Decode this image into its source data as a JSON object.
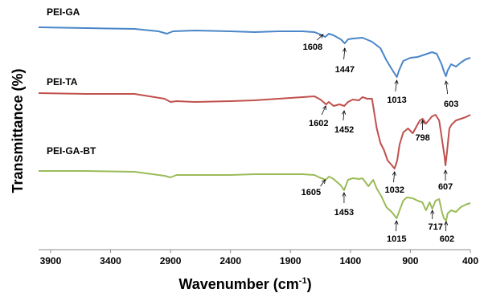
{
  "chart_data": {
    "type": "line",
    "xlabel": "Wavenumber (cm",
    "xlabel_superscript": "-1",
    "xlabel_suffix": ")",
    "ylabel": "Transmittance (%)",
    "xlim": [
      4000,
      400
    ],
    "x_reversed": true,
    "x_ticks": [
      3900,
      3400,
      2900,
      2400,
      1900,
      1400,
      900,
      400
    ],
    "y_ticks_shown": false,
    "grid": false,
    "series": [
      {
        "name": "PEI-GA",
        "color": "#4a86c8",
        "points": [
          [
            4000,
            34
          ],
          [
            3600,
            35
          ],
          [
            3200,
            36
          ],
          [
            3000,
            39
          ],
          [
            2930,
            42
          ],
          [
            2880,
            39
          ],
          [
            2700,
            38
          ],
          [
            2400,
            39
          ],
          [
            2200,
            40
          ],
          [
            2000,
            39
          ],
          [
            1800,
            39
          ],
          [
            1700,
            40
          ],
          [
            1650,
            43
          ],
          [
            1610,
            46
          ],
          [
            1580,
            42
          ],
          [
            1540,
            44
          ],
          [
            1480,
            49
          ],
          [
            1447,
            54
          ],
          [
            1420,
            49
          ],
          [
            1380,
            48
          ],
          [
            1300,
            47
          ],
          [
            1220,
            52
          ],
          [
            1150,
            60
          ],
          [
            1100,
            75
          ],
          [
            1060,
            85
          ],
          [
            1030,
            92
          ],
          [
            1013,
            96
          ],
          [
            995,
            88
          ],
          [
            960,
            76
          ],
          [
            900,
            72
          ],
          [
            840,
            71
          ],
          [
            780,
            68
          ],
          [
            720,
            65
          ],
          [
            680,
            67
          ],
          [
            640,
            80
          ],
          [
            618,
            90
          ],
          [
            603,
            95
          ],
          [
            590,
            88
          ],
          [
            560,
            80
          ],
          [
            520,
            83
          ],
          [
            480,
            78
          ],
          [
            440,
            74
          ],
          [
            400,
            72
          ]
        ]
      },
      {
        "name": "PEI-TA",
        "color": "#c0504d",
        "points": [
          [
            4000,
            116
          ],
          [
            3600,
            117
          ],
          [
            3200,
            117
          ],
          [
            2950,
            123
          ],
          [
            2900,
            127
          ],
          [
            2850,
            126
          ],
          [
            2700,
            127
          ],
          [
            2400,
            126
          ],
          [
            2200,
            125
          ],
          [
            2000,
            123
          ],
          [
            1800,
            121
          ],
          [
            1700,
            120
          ],
          [
            1650,
            124
          ],
          [
            1602,
            130
          ],
          [
            1580,
            127
          ],
          [
            1540,
            132
          ],
          [
            1490,
            130
          ],
          [
            1452,
            132
          ],
          [
            1420,
            127
          ],
          [
            1380,
            124
          ],
          [
            1330,
            125
          ],
          [
            1300,
            121
          ],
          [
            1260,
            123
          ],
          [
            1220,
            123
          ],
          [
            1180,
            160
          ],
          [
            1150,
            178
          ],
          [
            1120,
            187
          ],
          [
            1090,
            200
          ],
          [
            1060,
            205
          ],
          [
            1032,
            210
          ],
          [
            1010,
            200
          ],
          [
            990,
            180
          ],
          [
            960,
            165
          ],
          [
            920,
            160
          ],
          [
            880,
            166
          ],
          [
            840,
            155
          ],
          [
            820,
            150
          ],
          [
            798,
            148
          ],
          [
            770,
            154
          ],
          [
            720,
            145
          ],
          [
            690,
            143
          ],
          [
            660,
            150
          ],
          [
            640,
            170
          ],
          [
            615,
            195
          ],
          [
            607,
            206
          ],
          [
            595,
            190
          ],
          [
            575,
            160
          ],
          [
            555,
            155
          ],
          [
            520,
            150
          ],
          [
            480,
            148
          ],
          [
            440,
            146
          ],
          [
            400,
            143
          ]
        ]
      },
      {
        "name": "PEI-GA-BT",
        "color": "#9bbb59",
        "points": [
          [
            4000,
            213
          ],
          [
            3600,
            213
          ],
          [
            3200,
            214
          ],
          [
            2950,
            219
          ],
          [
            2900,
            221
          ],
          [
            2850,
            218
          ],
          [
            2600,
            218
          ],
          [
            2400,
            218
          ],
          [
            2200,
            217
          ],
          [
            2000,
            217
          ],
          [
            1800,
            217
          ],
          [
            1700,
            218
          ],
          [
            1660,
            221
          ],
          [
            1605,
            224
          ],
          [
            1580,
            220
          ],
          [
            1540,
            223
          ],
          [
            1480,
            231
          ],
          [
            1453,
            237
          ],
          [
            1420,
            224
          ],
          [
            1380,
            222
          ],
          [
            1330,
            223
          ],
          [
            1300,
            222
          ],
          [
            1250,
            232
          ],
          [
            1210,
            224
          ],
          [
            1180,
            235
          ],
          [
            1140,
            245
          ],
          [
            1100,
            258
          ],
          [
            1050,
            265
          ],
          [
            1015,
            272
          ],
          [
            990,
            262
          ],
          [
            960,
            250
          ],
          [
            930,
            246
          ],
          [
            880,
            247
          ],
          [
            840,
            250
          ],
          [
            800,
            252
          ],
          [
            770,
            262
          ],
          [
            740,
            252
          ],
          [
            717,
            260
          ],
          [
            690,
            250
          ],
          [
            660,
            248
          ],
          [
            635,
            265
          ],
          [
            620,
            272
          ],
          [
            602,
            275
          ],
          [
            590,
            266
          ],
          [
            560,
            262
          ],
          [
            520,
            264
          ],
          [
            480,
            258
          ],
          [
            440,
            255
          ],
          [
            400,
            253
          ]
        ]
      }
    ],
    "peak_annotations": [
      {
        "series": "PEI-GA",
        "label": "1608",
        "x": 1608
      },
      {
        "series": "PEI-GA",
        "label": "1447",
        "x": 1447
      },
      {
        "series": "PEI-GA",
        "label": "1013",
        "x": 1013
      },
      {
        "series": "PEI-GA",
        "label": "603",
        "x": 603
      },
      {
        "series": "PEI-TA",
        "label": "1602",
        "x": 1602
      },
      {
        "series": "PEI-TA",
        "label": "1452",
        "x": 1452
      },
      {
        "series": "PEI-TA",
        "label": "1032",
        "x": 1032
      },
      {
        "series": "PEI-TA",
        "label": "798",
        "x": 798
      },
      {
        "series": "PEI-TA",
        "label": "607",
        "x": 607
      },
      {
        "series": "PEI-GA-BT",
        "label": "1605",
        "x": 1605
      },
      {
        "series": "PEI-GA-BT",
        "label": "1453",
        "x": 1453
      },
      {
        "series": "PEI-GA-BT",
        "label": "1015",
        "x": 1015
      },
      {
        "series": "PEI-GA-BT",
        "label": "717",
        "x": 717
      },
      {
        "series": "PEI-GA-BT",
        "label": "602",
        "x": 602
      }
    ]
  }
}
